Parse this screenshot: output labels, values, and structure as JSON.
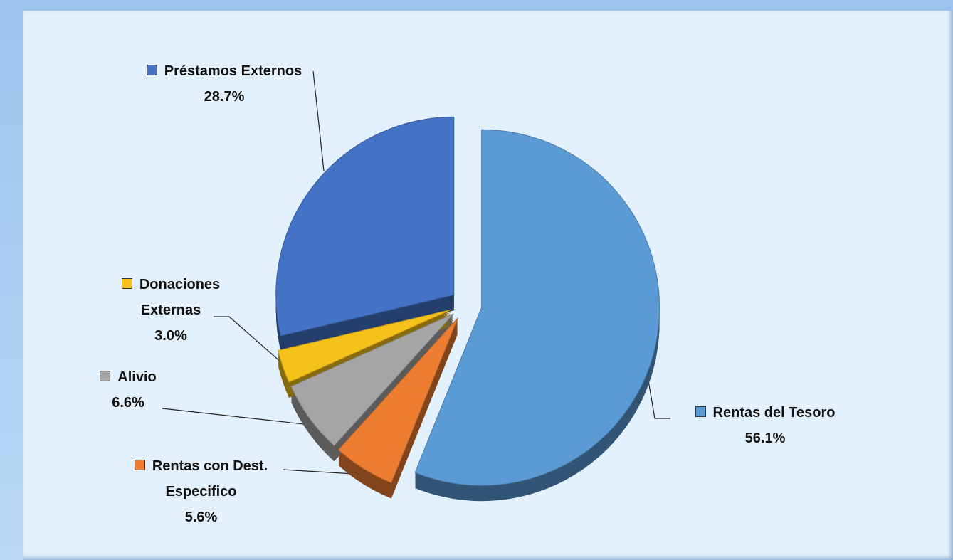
{
  "chart_data": {
    "type": "pie",
    "categories": [
      "Rentas del Tesoro",
      "Rentas con Dest. Especifico",
      "Alivio",
      "Donaciones Externas",
      "Préstamos Externos"
    ],
    "values": [
      56.1,
      5.6,
      6.6,
      3.0,
      28.7
    ],
    "value_labels": [
      "56.1%",
      "5.6%",
      "6.6%",
      "3.0%",
      "28.7%"
    ],
    "colors": [
      "#5b9bd5",
      "#ed7d31",
      "#a5a5a5",
      "#f5c21b",
      "#4472c4"
    ]
  }
}
